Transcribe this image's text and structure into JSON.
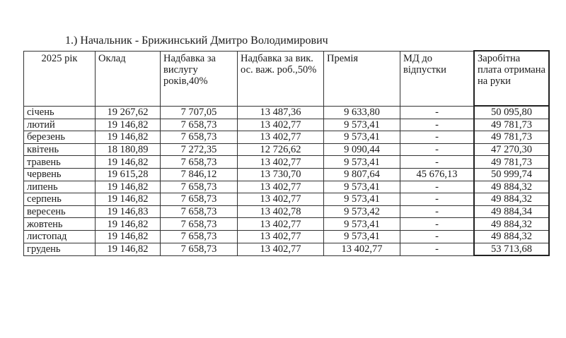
{
  "title": "1.) Начальник - Брижинський Дмитро Володимирович",
  "table": {
    "headers": [
      "2025 рік",
      "Оклад",
      "Надбавка за вислугу років,40%",
      "Надбавка за вик. ос. важ. роб.,50%",
      "Премія",
      "МД до відпустки",
      "Заробітна плата отримана на руки"
    ],
    "rows": [
      [
        "січень",
        "19 267,62",
        "7 707,05",
        "13 487,36",
        "9 633,80",
        "-",
        "50 095,80"
      ],
      [
        "лютий",
        "19 146,82",
        "7 658,73",
        "13 402,77",
        "9 573,41",
        "-",
        "49 781,73"
      ],
      [
        "березень",
        "19 146,82",
        "7 658,73",
        "13 402,77",
        "9 573,41",
        "-",
        "49 781,73"
      ],
      [
        "квітень",
        "18 180,89",
        "7 272,35",
        "12 726,62",
        "9 090,44",
        "-",
        "47 270,30"
      ],
      [
        "травень",
        "19 146,82",
        "7 658,73",
        "13 402,77",
        "9 573,41",
        "-",
        "49 781,73"
      ],
      [
        "червень",
        "19 615,28",
        "7 846,12",
        "13 730,70",
        "9 807,64",
        "45 676,13",
        "50 999,74"
      ],
      [
        "липень",
        "19 146,82",
        "7 658,73",
        "13 402,77",
        "9 573,41",
        "-",
        "49 884,32"
      ],
      [
        "серпень",
        "19 146,82",
        "7 658,73",
        "13 402,77",
        "9 573,41",
        "-",
        "49 884,32"
      ],
      [
        "вересень",
        "19 146,83",
        "7 658,73",
        "13 402,78",
        "9 573,42",
        "-",
        "49 884,34"
      ],
      [
        "жовтень",
        "19 146,82",
        "7 658,73",
        "13 402,77",
        "9 573,41",
        "-",
        "49 884,32"
      ],
      [
        "листопад",
        "19 146,82",
        "7 658,73",
        "13 402,77",
        "9 573,41",
        "-",
        "49 884,32"
      ],
      [
        "грудень",
        "19 146,82",
        "7 658,73",
        "13 402,77",
        "13 402,77",
        "-",
        "53 713,68"
      ]
    ]
  }
}
